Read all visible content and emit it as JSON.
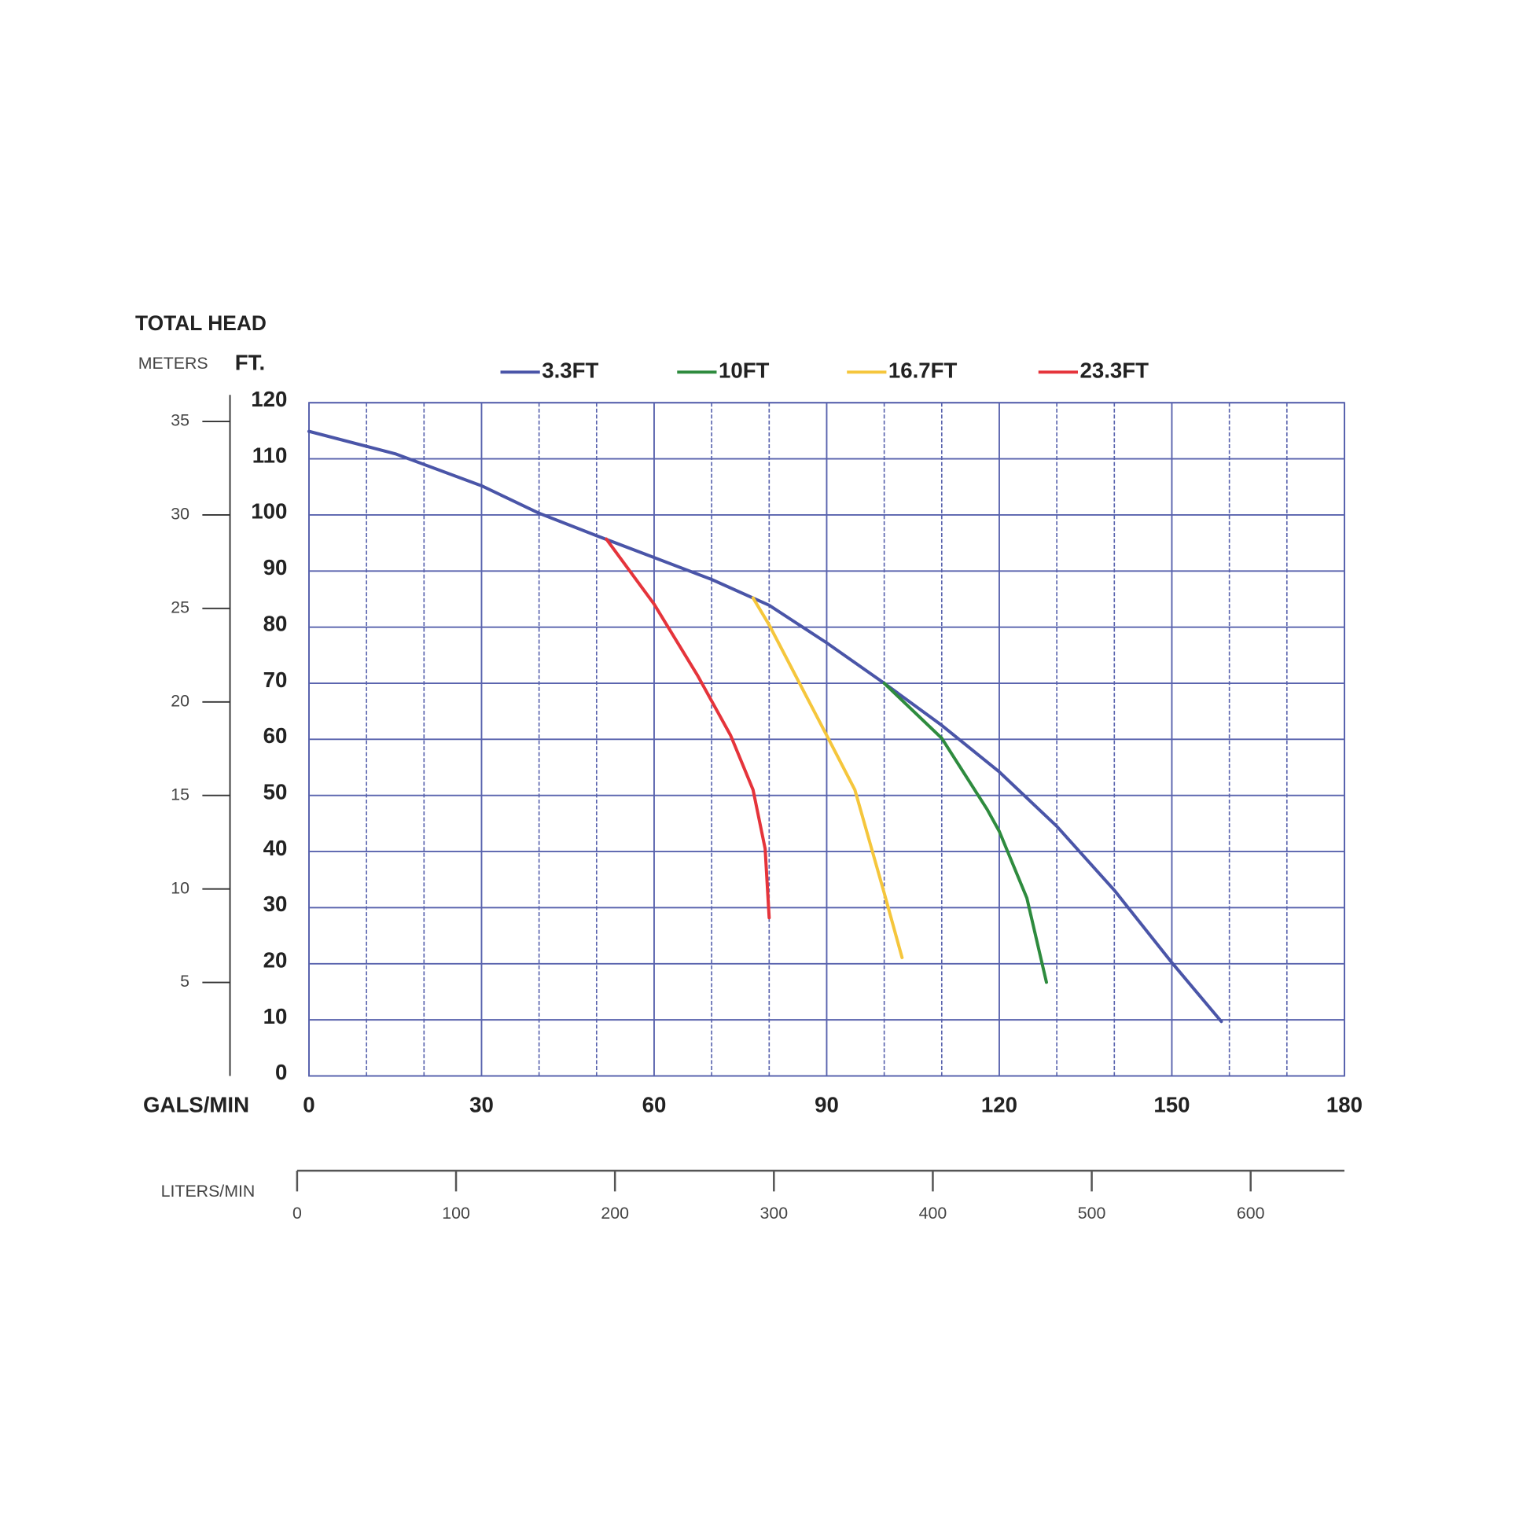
{
  "chart_data": {
    "type": "line",
    "title": "TOTAL HEAD",
    "ylabel": "FT.",
    "y2label": "METERS",
    "xlabel": "GALS/MIN",
    "x2label": "LITERS/MIN",
    "xlim": [
      0,
      180
    ],
    "xticks": [
      0,
      30,
      60,
      90,
      120,
      150,
      180
    ],
    "xminor": [
      10,
      20,
      40,
      50,
      70,
      80,
      100,
      110,
      130,
      140,
      160,
      170
    ],
    "ylim": [
      0,
      120
    ],
    "yticks": [
      0,
      10,
      20,
      30,
      40,
      50,
      60,
      70,
      80,
      90,
      100,
      110,
      120
    ],
    "y2lim": [
      0,
      36
    ],
    "y2ticks": [
      5,
      10,
      15,
      20,
      25,
      30,
      35
    ],
    "x2lim": [
      0,
      659
    ],
    "x2ticks": [
      0,
      100,
      200,
      300,
      400,
      500,
      600
    ],
    "grid": true,
    "grid_color": "#5862ad",
    "series": [
      {
        "name": "3.3FT",
        "color": "#4a55a8",
        "x": [
          0,
          15,
          30,
          40,
          50,
          60,
          70,
          80,
          90,
          100,
          110,
          120,
          130,
          140,
          150,
          158.6
        ],
        "values": [
          114.9,
          110.9,
          105.2,
          100.3,
          96.3,
          92.4,
          88.5,
          83.9,
          77.2,
          70.0,
          62.5,
          54.2,
          44.5,
          33.1,
          20.2,
          9.7
        ]
      },
      {
        "name": "10FT",
        "color": "#2e8b3e",
        "x": [
          100,
          110,
          117.9,
          120,
          124.8,
          128.2
        ],
        "values": [
          70.0,
          60.2,
          47.5,
          43.6,
          31.7,
          16.7
        ]
      },
      {
        "name": "16.7FT",
        "color": "#f5c63c",
        "x": [
          77.2,
          80,
          90,
          94.9,
          100,
          103.1
        ],
        "values": [
          85.2,
          80.4,
          60.7,
          51.0,
          32.6,
          21.1
        ]
      },
      {
        "name": "23.3FT",
        "color": "#e5343b",
        "x": [
          51.7,
          60,
          67.6,
          73.3,
          77.2,
          79.3,
          80
        ],
        "values": [
          95.7,
          84.1,
          71.3,
          60.7,
          51.0,
          40.5,
          28.2
        ]
      }
    ]
  }
}
